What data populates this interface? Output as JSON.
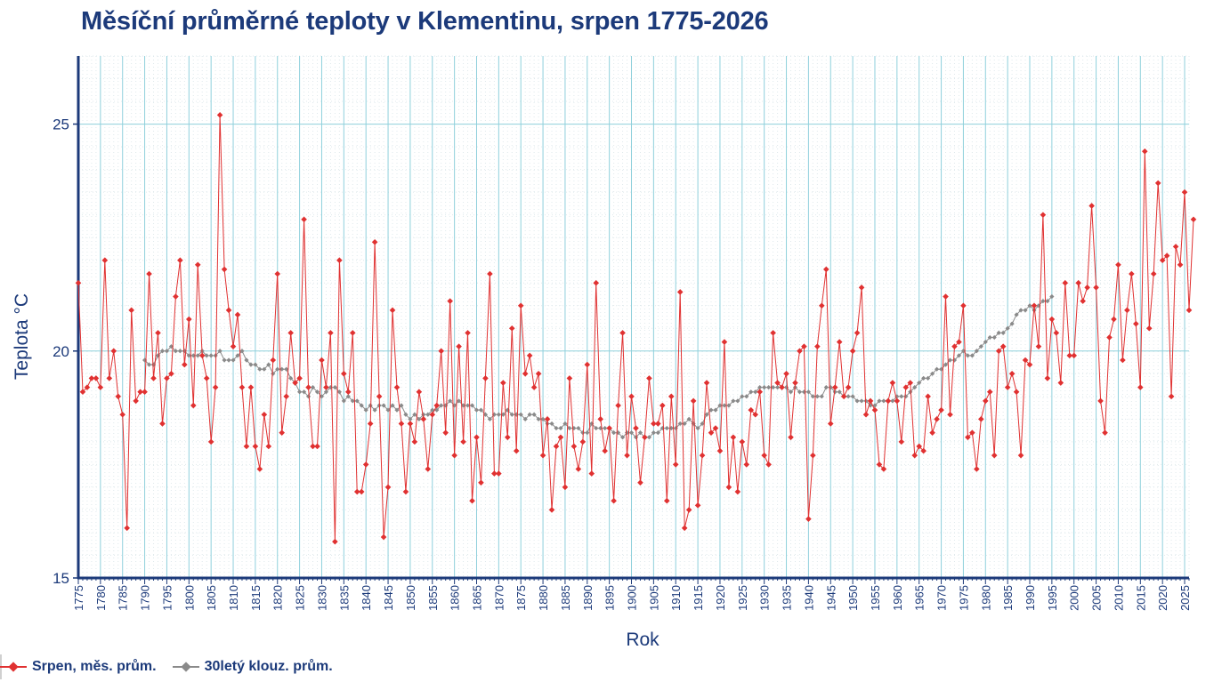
{
  "chart_data": {
    "type": "line",
    "title": "Měsíční průměrné teploty v Klementinu, srpen 1775-2026",
    "xlabel": "Rok",
    "ylabel": "Teplota  °C",
    "xlim": [
      1775,
      2026
    ],
    "ylim": [
      15,
      26.5
    ],
    "yticks": [
      15,
      20,
      25
    ],
    "xticks": [
      1775,
      1780,
      1785,
      1790,
      1795,
      1800,
      1805,
      1810,
      1815,
      1820,
      1825,
      1830,
      1835,
      1840,
      1845,
      1850,
      1855,
      1860,
      1865,
      1870,
      1875,
      1880,
      1885,
      1890,
      1895,
      1900,
      1905,
      1910,
      1915,
      1920,
      1925,
      1930,
      1935,
      1940,
      1945,
      1950,
      1955,
      1960,
      1965,
      1970,
      1975,
      1980,
      1985,
      1990,
      1995,
      2000,
      2005,
      2010,
      2015,
      2020,
      2025
    ],
    "grid": true,
    "legend_position": "bottom-left",
    "colors": {
      "monthly": "#e03131",
      "rolling": "#8a8a8a",
      "title": "#1c3a7a",
      "axis": "#1c3a7a",
      "grid": "#8fd0dc"
    },
    "series": [
      {
        "name": "Srpen, měs. prům.",
        "x_start": 1775,
        "values": [
          21.5,
          19.1,
          19.2,
          19.4,
          19.4,
          19.2,
          22.0,
          19.4,
          20.0,
          19.0,
          18.6,
          16.1,
          20.9,
          18.9,
          19.1,
          19.1,
          21.7,
          19.4,
          20.4,
          18.4,
          19.4,
          19.5,
          21.2,
          22.0,
          19.7,
          20.7,
          18.8,
          21.9,
          19.9,
          19.4,
          18.0,
          19.2,
          25.2,
          21.8,
          20.9,
          20.1,
          20.8,
          19.2,
          17.9,
          19.2,
          17.9,
          17.4,
          18.6,
          17.9,
          19.8,
          21.7,
          18.2,
          19.0,
          20.4,
          19.3,
          19.4,
          22.9,
          19.2,
          17.9,
          17.9,
          19.8,
          19.2,
          20.4,
          15.8,
          22.0,
          19.5,
          19.1,
          20.4,
          16.9,
          16.9,
          17.5,
          18.4,
          22.4,
          19.0,
          15.9,
          17.0,
          20.9,
          19.2,
          18.4,
          16.9,
          18.4,
          18.0,
          19.1,
          18.5,
          17.4,
          18.6,
          18.8,
          20.0,
          18.2,
          21.1,
          17.7,
          20.1,
          18.0,
          20.4,
          16.7,
          18.1,
          17.1,
          19.4,
          21.7,
          17.3,
          17.3,
          19.3,
          18.1,
          20.5,
          17.8,
          21.0,
          19.5,
          19.9,
          19.2,
          19.5,
          17.7,
          18.5,
          16.5,
          17.9,
          18.1,
          17.0,
          19.4,
          17.9,
          17.4,
          18.0,
          19.7,
          17.3,
          21.5,
          18.5,
          17.8,
          18.3,
          16.7,
          18.8,
          20.4,
          17.7,
          19.0,
          18.3,
          17.1,
          18.1,
          19.4,
          18.4,
          18.4,
          18.8,
          16.7,
          19.0,
          17.5,
          21.3,
          16.1,
          16.5,
          18.9,
          16.6,
          17.7,
          19.3,
          18.2,
          18.3,
          17.8,
          20.2,
          17.0,
          18.1,
          16.9,
          18.0,
          17.5,
          18.7,
          18.6,
          19.1,
          17.7,
          17.5,
          20.4,
          19.3,
          19.2,
          19.5,
          18.1,
          19.3,
          20.0,
          20.1,
          16.3,
          17.7,
          20.1,
          21.0,
          21.8,
          18.4,
          19.2,
          20.2,
          19.0,
          19.2,
          20.0,
          20.4,
          21.4,
          18.6,
          18.9,
          18.7,
          17.5,
          17.4,
          18.9,
          19.3,
          18.9,
          18.0,
          19.2,
          19.3,
          17.7,
          17.9,
          17.8,
          19.0,
          18.2,
          18.5,
          18.7,
          21.2,
          18.6,
          20.1,
          20.2,
          21.0,
          18.1,
          18.2,
          17.4,
          18.5,
          18.9,
          19.1,
          17.7,
          20.0,
          20.1,
          19.2,
          19.5,
          19.1,
          17.7,
          19.8,
          19.7,
          21.0,
          20.1,
          23.0,
          19.4,
          20.7,
          20.4,
          19.3,
          21.5,
          19.9,
          19.9,
          21.5,
          21.1,
          21.4,
          23.2,
          21.4,
          18.9,
          18.2,
          20.3,
          20.7,
          21.9,
          19.8,
          20.9,
          21.7,
          20.6,
          19.2,
          24.4,
          20.5,
          21.7,
          23.7,
          22.0,
          22.1,
          19.0,
          22.3,
          21.9,
          23.5,
          20.9,
          22.9
        ]
      },
      {
        "name": "30letý klouz. prům.",
        "x_start": 1790,
        "values": [
          19.8,
          19.7,
          19.7,
          19.9,
          20.0,
          20.0,
          20.1,
          20.0,
          20.0,
          20.0,
          19.9,
          19.9,
          19.9,
          20.0,
          19.9,
          19.9,
          19.9,
          20.0,
          19.8,
          19.8,
          19.8,
          19.9,
          20.0,
          19.8,
          19.7,
          19.7,
          19.6,
          19.6,
          19.7,
          19.5,
          19.6,
          19.6,
          19.6,
          19.4,
          19.3,
          19.1,
          19.1,
          19.0,
          19.2,
          19.1,
          19.0,
          19.1,
          19.2,
          19.2,
          19.1,
          18.9,
          19.0,
          18.9,
          18.9,
          18.8,
          18.7,
          18.8,
          18.7,
          18.8,
          18.8,
          18.7,
          18.8,
          18.7,
          18.8,
          18.6,
          18.5,
          18.6,
          18.5,
          18.6,
          18.6,
          18.7,
          18.7,
          18.8,
          18.8,
          18.9,
          18.8,
          18.9,
          18.8,
          18.8,
          18.8,
          18.7,
          18.7,
          18.6,
          18.5,
          18.6,
          18.6,
          18.6,
          18.7,
          18.6,
          18.6,
          18.6,
          18.5,
          18.6,
          18.6,
          18.5,
          18.5,
          18.4,
          18.4,
          18.3,
          18.3,
          18.4,
          18.3,
          18.3,
          18.3,
          18.2,
          18.2,
          18.4,
          18.3,
          18.3,
          18.3,
          18.3,
          18.2,
          18.2,
          18.1,
          18.2,
          18.2,
          18.1,
          18.2,
          18.1,
          18.1,
          18.2,
          18.2,
          18.3,
          18.3,
          18.3,
          18.3,
          18.4,
          18.4,
          18.5,
          18.4,
          18.3,
          18.4,
          18.6,
          18.7,
          18.7,
          18.8,
          18.8,
          18.8,
          18.9,
          18.9,
          19.0,
          19.0,
          19.1,
          19.1,
          19.2,
          19.2,
          19.2,
          19.2,
          19.2,
          19.2,
          19.2,
          19.1,
          19.2,
          19.1,
          19.1,
          19.1,
          19.0,
          19.0,
          19.0,
          19.2,
          19.2,
          19.1,
          19.1,
          19.0,
          19.0,
          19.0,
          18.9,
          18.9,
          18.9,
          18.8,
          18.8,
          18.9,
          18.9,
          18.9,
          18.9,
          19.0,
          19.0,
          19.0,
          19.1,
          19.2,
          19.3,
          19.4,
          19.4,
          19.5,
          19.6,
          19.6,
          19.7,
          19.8,
          19.8,
          19.9,
          20.0,
          19.9,
          19.9,
          20.0,
          20.1,
          20.2,
          20.3,
          20.3,
          20.4,
          20.4,
          20.5,
          20.6,
          20.8,
          20.9,
          20.9,
          21.0,
          20.9,
          21.0,
          21.1,
          21.1,
          21.2
        ]
      }
    ]
  }
}
